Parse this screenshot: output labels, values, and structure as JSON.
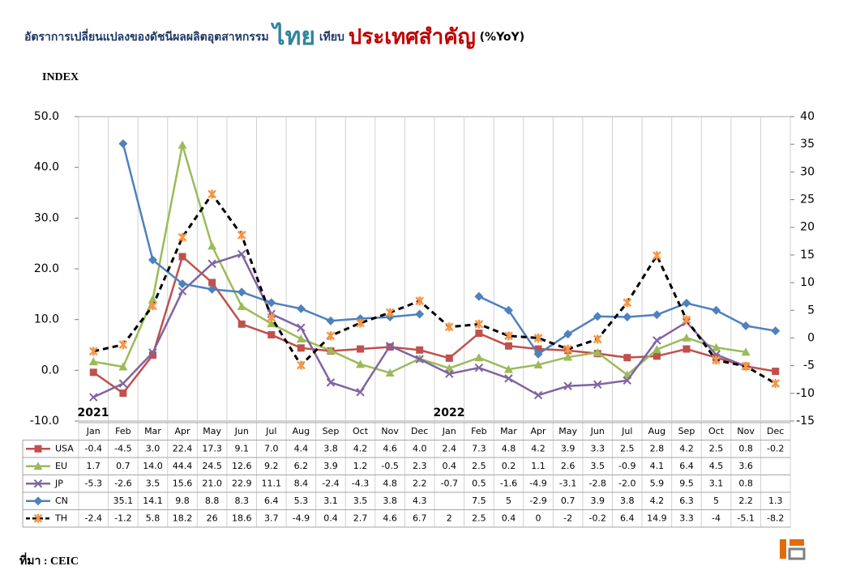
{
  "chart_data": {
    "type": "line",
    "title_parts": [
      "อัตราการเปลี่ยนแปลงของดัชนีผลผลิตอุตสาหกรรม",
      "ไทย",
      "เทียบ",
      "ประเทศสำคัญ",
      "(%YoY)"
    ],
    "y_label": "INDEX",
    "source": "ที่มา : CEIC",
    "year_labels": [
      "2021",
      "2022"
    ],
    "categories": [
      "Jan",
      "Feb",
      "Mar",
      "Apr",
      "May",
      "Jun",
      "Jul",
      "Aug",
      "Sep",
      "Oct",
      "Nov",
      "Dec",
      "Jan",
      "Feb",
      "Mar",
      "Apr",
      "May",
      "Jun",
      "Jul",
      "Aug",
      "Sep",
      "Oct",
      "Nov",
      "Dec"
    ],
    "ylim": [
      -10,
      50
    ],
    "yticks": [
      {
        "value": -10,
        "label": "-10.0"
      },
      {
        "value": 0,
        "label": "0.0"
      },
      {
        "value": 10,
        "label": "10.0"
      },
      {
        "value": 20,
        "label": "20.0"
      },
      {
        "value": 30,
        "label": "30.0"
      },
      {
        "value": 40,
        "label": "40.0"
      },
      {
        "value": 50,
        "label": "50.0"
      }
    ],
    "y2lim": [
      -15,
      40
    ],
    "y2ticks": [
      -15,
      -10,
      -5,
      0,
      5,
      10,
      15,
      20,
      25,
      30,
      35,
      40
    ],
    "series": [
      {
        "name": "USA",
        "color": "#c0504d",
        "marker": "square",
        "axis": "y",
        "values": [
          -0.4,
          -4.5,
          3.0,
          22.4,
          17.3,
          9.1,
          7.0,
          4.4,
          3.8,
          4.2,
          4.6,
          4.0,
          2.4,
          7.3,
          4.8,
          4.2,
          3.9,
          3.3,
          2.5,
          2.8,
          4.2,
          2.5,
          0.8,
          -0.2
        ],
        "value_labels": [
          "-0.4",
          "-4.5",
          "3.0",
          "22.4",
          "17.3",
          "9.1",
          "7.0",
          "4.4",
          "3.8",
          "4.2",
          "4.6",
          "4.0",
          "2.4",
          "7.3",
          "4.8",
          "4.2",
          "3.9",
          "3.3",
          "2.5",
          "2.8",
          "4.2",
          "2.5",
          "0.8",
          "-0.2"
        ]
      },
      {
        "name": "EU",
        "color": "#9bbb59",
        "marker": "triangle",
        "axis": "y",
        "values": [
          1.7,
          0.7,
          14.0,
          44.4,
          24.5,
          12.6,
          9.2,
          6.2,
          3.9,
          1.2,
          -0.5,
          2.3,
          0.4,
          2.5,
          0.2,
          1.1,
          2.6,
          3.5,
          -0.9,
          4.1,
          6.4,
          4.5,
          3.6,
          null
        ],
        "value_labels": [
          "1.7",
          "0.7",
          "14.0",
          "44.4",
          "24.5",
          "12.6",
          "9.2",
          "6.2",
          "3.9",
          "1.2",
          "-0.5",
          "2.3",
          "0.4",
          "2.5",
          "0.2",
          "1.1",
          "2.6",
          "3.5",
          "-0.9",
          "4.1",
          "6.4",
          "4.5",
          "3.6",
          null
        ]
      },
      {
        "name": "JP",
        "color": "#8064a2",
        "marker": "x",
        "axis": "y",
        "values": [
          -5.3,
          -2.6,
          3.5,
          15.6,
          21.0,
          22.9,
          11.1,
          8.4,
          -2.4,
          -4.3,
          4.8,
          2.2,
          -0.7,
          0.5,
          -1.6,
          -4.9,
          -3.1,
          -2.8,
          -2.0,
          5.9,
          9.5,
          3.1,
          0.8,
          null
        ],
        "value_labels": [
          "-5.3",
          "-2.6",
          "3.5",
          "15.6",
          "21.0",
          "22.9",
          "11.1",
          "8.4",
          "-2.4",
          "-4.3",
          "4.8",
          "2.2",
          "-0.7",
          "0.5",
          "-1.6",
          "-4.9",
          "-3.1",
          "-2.8",
          "-2.0",
          "5.9",
          "9.5",
          "3.1",
          "0.8",
          null
        ]
      },
      {
        "name": "CN",
        "color": "#4f81bd",
        "marker": "diamond",
        "axis": "y2",
        "values": [
          null,
          35.1,
          14.1,
          9.8,
          8.8,
          8.3,
          6.4,
          5.3,
          3.1,
          3.5,
          3.8,
          4.3,
          null,
          7.5,
          5,
          -2.9,
          0.7,
          3.9,
          3.8,
          4.2,
          6.3,
          5,
          2.2,
          1.3
        ],
        "value_labels": [
          null,
          "35.1",
          "14.1",
          "9.8",
          "8.8",
          "8.3",
          "6.4",
          "5.3",
          "3.1",
          "3.5",
          "3.8",
          "4.3",
          null,
          "7.5",
          "5",
          "-2.9",
          "0.7",
          "3.9",
          "3.8",
          "4.2",
          "6.3",
          "5",
          "2.2",
          "1.3"
        ]
      },
      {
        "name": "TH",
        "color": "#000000",
        "marker": "star",
        "marker_color": "#f79646",
        "dashed": true,
        "axis": "y2",
        "values": [
          -2.4,
          -1.2,
          5.8,
          18.2,
          26,
          18.6,
          3.7,
          -4.9,
          0.4,
          2.7,
          4.6,
          6.7,
          2,
          2.5,
          0.4,
          0,
          -2,
          -0.2,
          6.4,
          14.9,
          3.3,
          -4,
          -5.1,
          -8.2
        ]
      }
    ]
  }
}
